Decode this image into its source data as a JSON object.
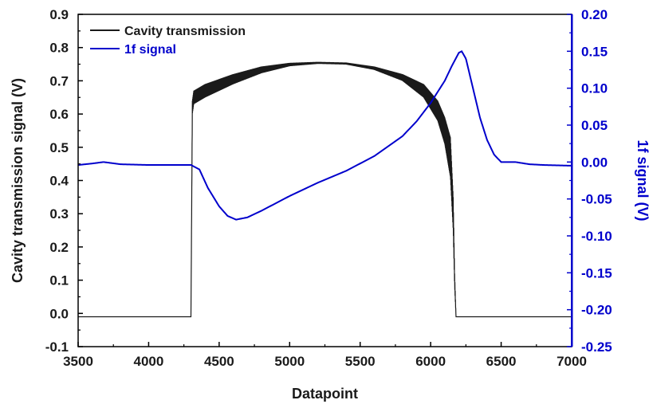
{
  "chart_data": {
    "type": "line",
    "xlabel": "Datapoint",
    "ylabel_left": "Cavity transmission signal (V)",
    "ylabel_right": "1f signal (V)",
    "xlim": [
      3500,
      7000
    ],
    "ylim_left": [
      -0.1,
      0.9
    ],
    "ylim_right": [
      -0.25,
      0.2
    ],
    "x_ticks": [
      "3500",
      "4000",
      "4500",
      "5000",
      "5500",
      "6000",
      "6500",
      "7000"
    ],
    "y_left_ticks": [
      "-0.1",
      "0.0",
      "0.1",
      "0.2",
      "0.3",
      "0.4",
      "0.5",
      "0.6",
      "0.7",
      "0.8",
      "0.9"
    ],
    "y_right_ticks": [
      "-0.25",
      "-0.20",
      "-0.15",
      "-0.10",
      "-0.05",
      "0.00",
      "0.05",
      "0.10",
      "0.15",
      "0.20"
    ],
    "grid": false,
    "legend_position": "top-left",
    "colors": {
      "left_axis": "#000000",
      "right_axis": "#0000cc"
    },
    "series": [
      {
        "name": "Cavity transmission",
        "axis": "left",
        "color": "#1a1a1a",
        "x": [
          3500,
          4300,
          4310,
          4320,
          4400,
          4600,
          4800,
          5000,
          5200,
          5400,
          5600,
          5800,
          5950,
          6050,
          6100,
          6140,
          6160,
          6170,
          6180,
          6200,
          7000
        ],
        "y": [
          -0.01,
          -0.01,
          0.62,
          0.65,
          0.67,
          0.705,
          0.733,
          0.749,
          0.754,
          0.752,
          0.738,
          0.71,
          0.67,
          0.61,
          0.55,
          0.47,
          0.3,
          0.1,
          -0.01,
          -0.01,
          -0.01
        ],
        "oscillation_amplitude": [
          0,
          0,
          0.02,
          0.02,
          0.02,
          0.015,
          0.01,
          0.005,
          0.003,
          0.003,
          0.005,
          0.01,
          0.02,
          0.03,
          0.04,
          0.06,
          0.05,
          0.02,
          0,
          0,
          0
        ]
      },
      {
        "name": "1f signal",
        "axis": "right",
        "color": "#0000cc",
        "x": [
          3500,
          3600,
          3680,
          3800,
          4000,
          4300,
          4360,
          4420,
          4500,
          4560,
          4620,
          4700,
          4800,
          4900,
          5000,
          5200,
          5400,
          5600,
          5800,
          5900,
          6000,
          6050,
          6100,
          6150,
          6200,
          6220,
          6250,
          6300,
          6350,
          6400,
          6450,
          6500,
          6600,
          6700,
          6800,
          7000
        ],
        "y": [
          -0.004,
          -0.002,
          0.0,
          -0.003,
          -0.004,
          -0.004,
          -0.01,
          -0.035,
          -0.06,
          -0.073,
          -0.078,
          -0.075,
          -0.066,
          -0.056,
          -0.046,
          -0.028,
          -0.012,
          0.008,
          0.035,
          0.055,
          0.08,
          0.095,
          0.11,
          0.13,
          0.148,
          0.15,
          0.14,
          0.1,
          0.06,
          0.03,
          0.01,
          0.0,
          0.0,
          -0.003,
          -0.004,
          -0.005
        ]
      }
    ]
  }
}
